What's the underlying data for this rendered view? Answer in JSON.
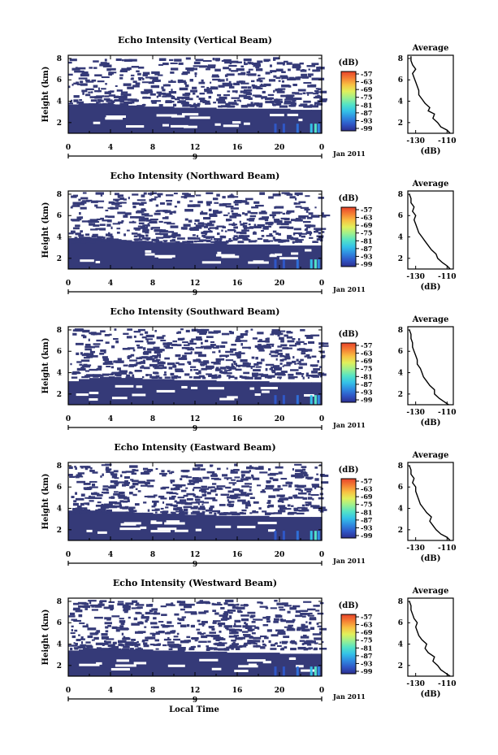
{
  "figure": {
    "xlabel": "Local Time",
    "colors": {
      "echo_fill": "#353a78",
      "colorbar": [
        "#2c2f8f",
        "#2f57c7",
        "#2f8be0",
        "#34c2e8",
        "#54e3c6",
        "#9cf08f",
        "#e1f05b",
        "#f8c042",
        "#f57f34",
        "#e8432a"
      ]
    }
  },
  "chart_data": [
    {
      "type": "heatmap",
      "title": "Echo Intensity (Vertical Beam)",
      "ylabel": "Height (km)",
      "xticks": [
        "0",
        "4",
        "8",
        "12",
        "16",
        "20",
        "0"
      ],
      "yticks": [
        "2",
        "4",
        "6",
        "8"
      ],
      "date_label": "Jan 2011",
      "date_tick": "9",
      "xlim": [
        0,
        24
      ],
      "ylim": [
        1,
        8.3
      ],
      "colorbar": {
        "unit": "(dB)",
        "ticks": [
          "-57",
          "-63",
          "-69",
          "-75",
          "-81",
          "-87",
          "-93",
          "-99"
        ]
      },
      "echo_top_km": [
        3.7,
        3.8,
        3.8,
        3.8,
        3.7,
        3.6,
        3.6,
        3.5,
        3.5,
        3.5,
        3.4,
        3.4,
        3.4,
        3.4,
        3.3,
        3.3,
        3.3,
        3.3,
        3.3,
        3.3,
        3.3,
        3.2,
        3.2,
        3.2
      ],
      "profile": {
        "title": "Average",
        "xlabel": "(dB)",
        "xticks": [
          "-130",
          "-110"
        ],
        "xlim": [
          -135,
          -106
        ],
        "yticks": [
          "2",
          "4",
          "6",
          "8"
        ],
        "height_km": [
          1.0,
          1.3,
          1.6,
          2.0,
          2.4,
          2.8,
          3.1,
          3.4,
          3.8,
          4.2,
          4.6,
          5.0,
          5.4,
          5.8,
          6.2,
          6.6,
          7.0,
          7.4,
          7.8,
          8.2
        ],
        "db": [
          -108,
          -110,
          -114,
          -116,
          -119,
          -118,
          -122,
          -121,
          -124,
          -126,
          -128,
          -128,
          -129,
          -130,
          -131,
          -132,
          -130,
          -132,
          -133,
          -133
        ]
      }
    },
    {
      "type": "heatmap",
      "title": "Echo Intensity (Northward Beam)",
      "ylabel": "Height (km)",
      "xticks": [
        "0",
        "4",
        "8",
        "12",
        "16",
        "20",
        "0"
      ],
      "yticks": [
        "2",
        "4",
        "6",
        "8"
      ],
      "date_label": "Jan 2011",
      "date_tick": "9",
      "xlim": [
        0,
        24
      ],
      "ylim": [
        1,
        8.3
      ],
      "colorbar": {
        "unit": "(dB)",
        "ticks": [
          "-57",
          "-63",
          "-69",
          "-75",
          "-81",
          "-87",
          "-93",
          "-99"
        ]
      },
      "echo_top_km": [
        3.9,
        4.0,
        3.9,
        3.8,
        3.8,
        3.7,
        3.6,
        3.6,
        3.5,
        3.5,
        3.5,
        3.4,
        3.4,
        3.4,
        3.4,
        3.3,
        3.3,
        3.3,
        3.3,
        3.3,
        3.2,
        3.2,
        3.2,
        3.2
      ],
      "profile": {
        "title": "Average",
        "xlabel": "(dB)",
        "xticks": [
          "-130",
          "-110"
        ],
        "xlim": [
          -135,
          -106
        ],
        "yticks": [
          "2",
          "4",
          "6",
          "8"
        ],
        "height_km": [
          1.0,
          1.3,
          1.6,
          2.0,
          2.4,
          2.8,
          3.2,
          3.6,
          4.0,
          4.4,
          4.8,
          5.2,
          5.6,
          6.0,
          6.4,
          6.8,
          7.2,
          7.6,
          8.0
        ],
        "db": [
          -108,
          -110,
          -113,
          -116,
          -117,
          -120,
          -122,
          -124,
          -126,
          -128,
          -129,
          -130,
          -131,
          -130,
          -132,
          -131,
          -133,
          -133,
          -134
        ]
      }
    },
    {
      "type": "heatmap",
      "title": "Echo Intensity (Southward Beam)",
      "ylabel": "Height (km)",
      "xticks": [
        "0",
        "4",
        "8",
        "12",
        "16",
        "20",
        "0"
      ],
      "yticks": [
        "2",
        "4",
        "6",
        "8"
      ],
      "date_label": "Jan 2011",
      "date_tick": "9",
      "xlim": [
        0,
        24
      ],
      "ylim": [
        1,
        8.3
      ],
      "colorbar": {
        "unit": "(dB)",
        "ticks": [
          "-57",
          "-63",
          "-69",
          "-75",
          "-81",
          "-87",
          "-93",
          "-99"
        ]
      },
      "echo_top_km": [
        3.2,
        3.4,
        3.5,
        3.6,
        3.6,
        3.5,
        3.5,
        3.4,
        3.4,
        3.4,
        3.3,
        3.3,
        3.3,
        3.3,
        3.2,
        3.2,
        3.2,
        3.2,
        3.2,
        3.1,
        3.1,
        3.1,
        3.1,
        3.1
      ],
      "profile": {
        "title": "Average",
        "xlabel": "(dB)",
        "xticks": [
          "-130",
          "-110"
        ],
        "xlim": [
          -135,
          -106
        ],
        "yticks": [
          "2",
          "4",
          "6",
          "8"
        ],
        "height_km": [
          1.0,
          1.3,
          1.6,
          2.0,
          2.4,
          2.8,
          3.2,
          3.6,
          4.0,
          4.4,
          4.8,
          5.2,
          5.6,
          6.0,
          6.4,
          6.8,
          7.2,
          7.6,
          8.0
        ],
        "db": [
          -109,
          -112,
          -115,
          -118,
          -118,
          -121,
          -123,
          -125,
          -126,
          -127,
          -129,
          -129,
          -130,
          -131,
          -132,
          -132,
          -133,
          -133,
          -134
        ]
      }
    },
    {
      "type": "heatmap",
      "title": "Echo Intensity (Eastward Beam)",
      "ylabel": "Height (km)",
      "xticks": [
        "0",
        "4",
        "8",
        "12",
        "16",
        "20",
        "0"
      ],
      "yticks": [
        "2",
        "4",
        "6",
        "8"
      ],
      "date_label": "Jan 2011",
      "date_tick": "9",
      "xlim": [
        0,
        24
      ],
      "ylim": [
        1,
        8.3
      ],
      "colorbar": {
        "unit": "(dB)",
        "ticks": [
          "-57",
          "-63",
          "-69",
          "-75",
          "-81",
          "-87",
          "-93",
          "-99"
        ]
      },
      "echo_top_km": [
        3.8,
        3.9,
        3.8,
        3.8,
        3.7,
        3.7,
        3.6,
        3.6,
        3.5,
        3.5,
        3.5,
        3.4,
        3.4,
        3.4,
        3.3,
        3.3,
        3.3,
        3.3,
        3.3,
        3.2,
        3.2,
        3.2,
        3.2,
        3.2
      ],
      "profile": {
        "title": "Average",
        "xlabel": "(dB)",
        "xticks": [
          "-130",
          "-110"
        ],
        "xlim": [
          -135,
          -106
        ],
        "yticks": [
          "2",
          "4",
          "6",
          "8"
        ],
        "height_km": [
          1.0,
          1.3,
          1.6,
          2.0,
          2.4,
          2.8,
          3.2,
          3.6,
          4.0,
          4.4,
          4.8,
          5.2,
          5.6,
          6.0,
          6.4,
          6.8,
          7.2,
          7.6,
          8.0
        ],
        "db": [
          -108,
          -110,
          -114,
          -117,
          -119,
          -121,
          -120,
          -123,
          -125,
          -127,
          -128,
          -129,
          -130,
          -130,
          -132,
          -131,
          -133,
          -133,
          -134
        ]
      }
    },
    {
      "type": "heatmap",
      "title": "Echo Intensity (Westward Beam)",
      "ylabel": "Height (km)",
      "xticks": [
        "0",
        "4",
        "8",
        "12",
        "16",
        "20",
        "0"
      ],
      "yticks": [
        "2",
        "4",
        "6",
        "8"
      ],
      "date_label": "Jan 2011",
      "date_tick": "9",
      "xlim": [
        0,
        24
      ],
      "ylim": [
        1,
        8.3
      ],
      "colorbar": {
        "unit": "(dB)",
        "ticks": [
          "-57",
          "-63",
          "-69",
          "-75",
          "-81",
          "-87",
          "-93",
          "-99"
        ]
      },
      "echo_top_km": [
        3.4,
        3.5,
        3.6,
        3.6,
        3.6,
        3.5,
        3.5,
        3.5,
        3.4,
        3.4,
        3.4,
        3.3,
        3.3,
        3.3,
        3.3,
        3.2,
        3.2,
        3.2,
        3.2,
        3.2,
        3.1,
        3.1,
        3.1,
        3.1
      ],
      "profile": {
        "title": "Average",
        "xlabel": "(dB)",
        "xticks": [
          "-130",
          "-110"
        ],
        "xlim": [
          -135,
          -106
        ],
        "yticks": [
          "2",
          "4",
          "6",
          "8"
        ],
        "height_km": [
          1.0,
          1.3,
          1.6,
          2.0,
          2.4,
          2.8,
          3.2,
          3.6,
          4.0,
          4.4,
          4.8,
          5.2,
          5.6,
          6.0,
          6.4,
          6.8,
          7.2,
          7.6,
          8.0
        ],
        "db": [
          -108,
          -111,
          -114,
          -116,
          -119,
          -118,
          -122,
          -124,
          -123,
          -126,
          -128,
          -129,
          -130,
          -129,
          -131,
          -132,
          -133,
          -133,
          -134
        ]
      }
    }
  ]
}
